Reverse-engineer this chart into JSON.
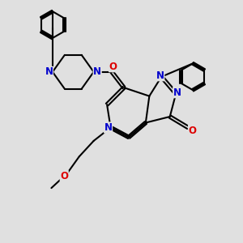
{
  "background_color": "#e0e0e0",
  "bond_color": "#000000",
  "bond_width": 1.5,
  "atom_colors": {
    "N": "#0000cc",
    "O": "#dd0000",
    "C": "#000000"
  },
  "font_size_atom": 8.5,
  "fig_size": [
    3.0,
    3.0
  ],
  "dpi": 100
}
